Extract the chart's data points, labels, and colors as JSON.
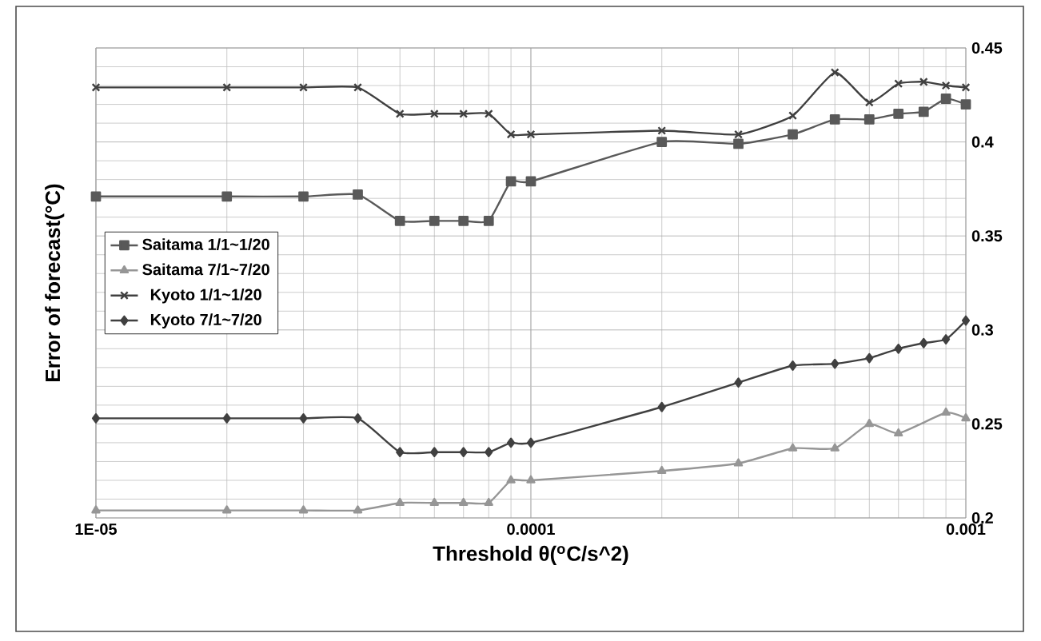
{
  "chart_data": {
    "type": "line",
    "xlabel": "Threshold θ($^{o}$C/s^2)",
    "ylabel": "Error of forecast(°C)",
    "log": "x",
    "grid": true,
    "legend": "left",
    "tick_labels": "xy",
    "x": [
      1e-05,
      2e-05,
      3e-05,
      4e-05,
      5e-05,
      6e-05,
      7e-05,
      8e-05,
      9e-05,
      0.0001,
      0.0002,
      0.0003,
      0.0004,
      0.0005,
      0.0006,
      0.0007,
      0.0008,
      0.0009,
      0.001
    ],
    "xlim": [
      1e-05,
      0.001
    ],
    "xticks": [
      {
        "value": 1e-05,
        "label": "1E-05"
      },
      {
        "value": 0.0001,
        "label": "0.0001"
      },
      {
        "value": 0.001,
        "label": "0.001"
      }
    ],
    "ylim": [
      0.2,
      0.45
    ],
    "yticks": [
      0.2,
      0.25,
      0.3,
      0.35,
      0.4,
      0.45
    ],
    "series": [
      {
        "name": "Saitama 1/1~1/20",
        "color": "#595959",
        "marker": "square",
        "values": [
          0.371,
          0.371,
          0.371,
          0.372,
          0.358,
          0.358,
          0.358,
          0.358,
          0.379,
          0.379,
          0.4,
          0.399,
          0.404,
          0.412,
          0.412,
          0.415,
          0.416,
          0.423,
          0.42
        ]
      },
      {
        "name": "Saitama 7/1~7/20",
        "color": "#969696",
        "marker": "triangle",
        "x": [
          1e-05,
          2e-05,
          3e-05,
          4e-05,
          5e-05,
          6e-05,
          7e-05,
          8e-05,
          9e-05,
          0.0001,
          0.0002,
          0.0003,
          0.0004,
          0.0005,
          0.0006,
          0.0007,
          0.0009,
          0.001
        ],
        "values": [
          0.204,
          0.204,
          0.204,
          0.204,
          0.208,
          0.208,
          0.208,
          0.208,
          0.22,
          0.22,
          0.225,
          0.229,
          0.237,
          0.237,
          0.25,
          0.245,
          0.256,
          0.253
        ]
      },
      {
        "name": "Kyoto 1/1~1/20",
        "color": "#404040",
        "marker": "cross",
        "values": [
          0.429,
          0.429,
          0.429,
          0.429,
          0.415,
          0.415,
          0.415,
          0.415,
          0.404,
          0.404,
          0.406,
          0.404,
          0.414,
          0.437,
          0.421,
          0.431,
          0.432,
          0.43,
          0.429
        ]
      },
      {
        "name": "Kyoto 7/1~7/20",
        "color": "#404040",
        "marker": "diamond",
        "values": [
          0.253,
          0.253,
          0.253,
          0.253,
          0.235,
          0.235,
          0.235,
          0.235,
          0.24,
          0.24,
          0.259,
          0.272,
          0.281,
          0.282,
          0.285,
          0.29,
          0.293,
          0.295,
          0.305
        ]
      }
    ]
  }
}
